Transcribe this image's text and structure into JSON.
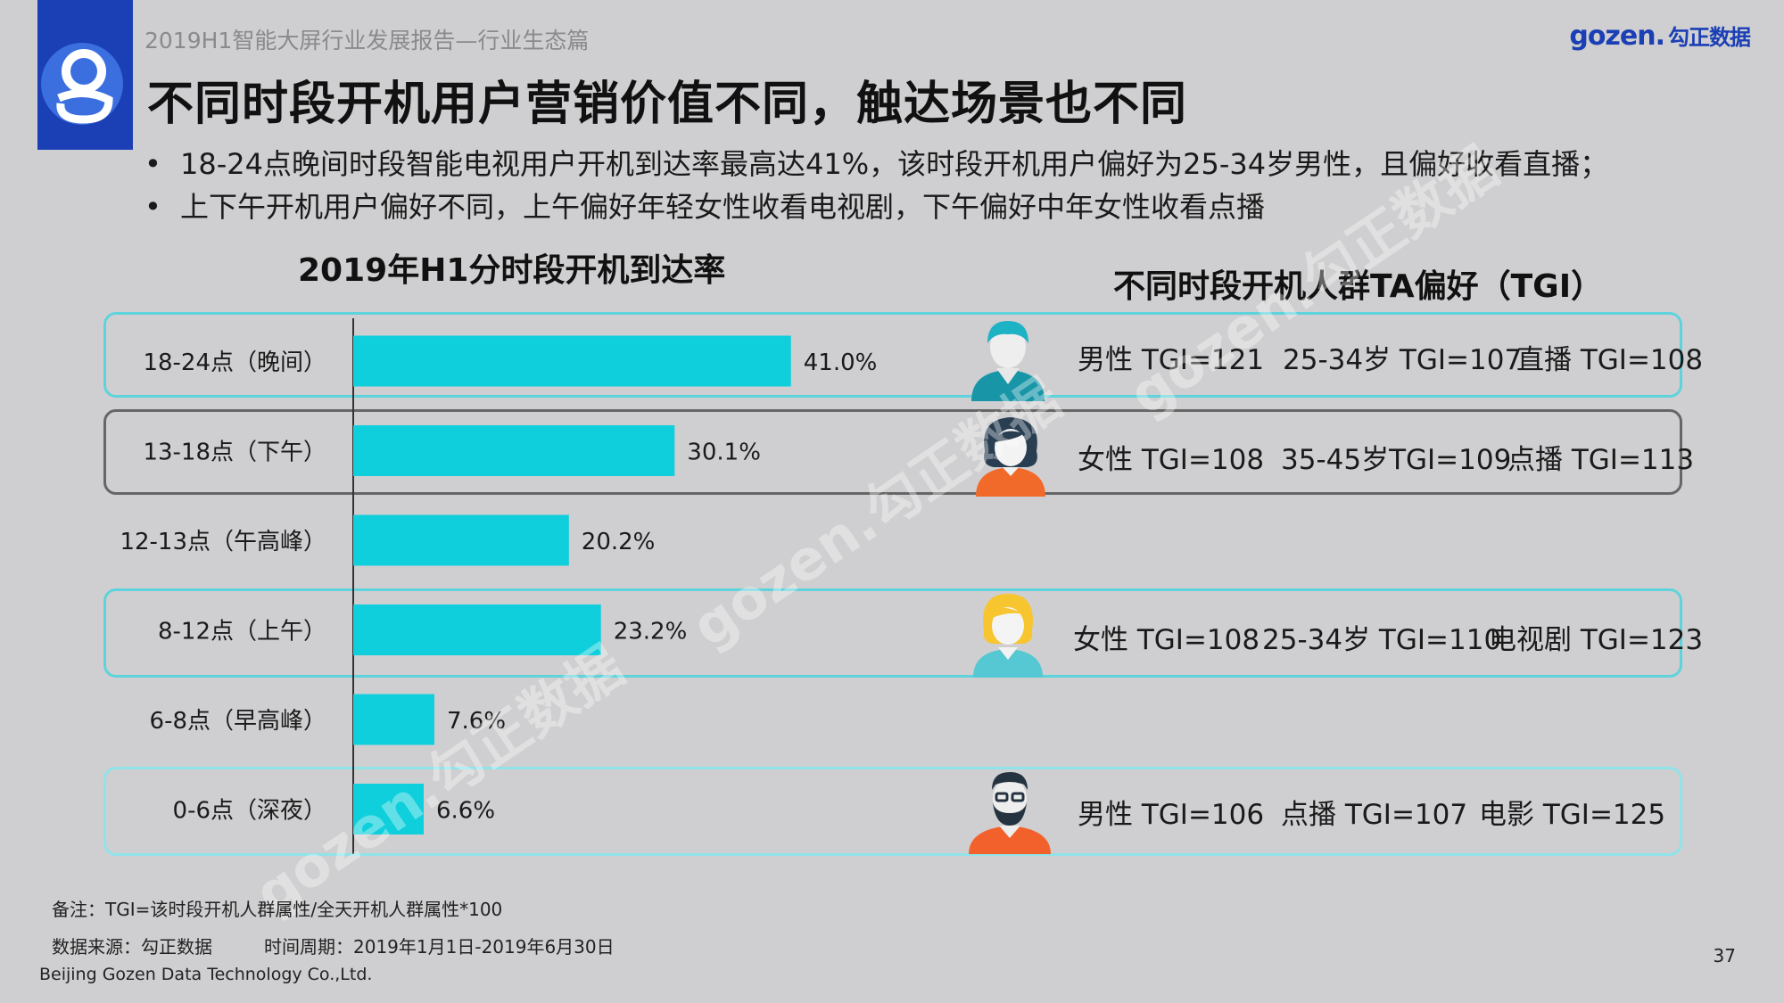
{
  "header": {
    "report_title": "2019H1智能大屏行业发展报告—行业生态篇",
    "brand_latin": "gozen.",
    "brand_cn": "勾正数据",
    "main_title": "不同时段开机用户营销价值不同，触达场景也不同"
  },
  "bullets": [
    "18-24点晚间时段智能电视用户开机到达率最高达41%，该时段开机用户偏好为25-34岁男性，且偏好收看直播；",
    "上下午开机用户偏好不同，上午偏好年轻女性收看电视剧，下午偏好中年女性收看点播"
  ],
  "chart_data": {
    "type": "bar",
    "orientation": "horizontal",
    "title": "2019年H1分时段开机到达率",
    "categories": [
      "18-24点（晚间）",
      "13-18点（下午）",
      "12-13点（午高峰）",
      "8-12点（上午）",
      "6-8点（早高峰）",
      "0-6点（深夜）"
    ],
    "values": [
      41.0,
      30.1,
      20.2,
      23.2,
      7.6,
      6.6
    ],
    "value_labels": [
      "41.0%",
      "30.1%",
      "20.2%",
      "23.2%",
      "7.6%",
      "6.6%"
    ],
    "unit": "%",
    "xlim": [
      0,
      45
    ],
    "bar_color": "#0fcfdc",
    "grid": false
  },
  "tgi": {
    "title": "不同时段开机人群TA偏好（TGI）",
    "rows": [
      {
        "avatar": "young-man-icon",
        "avatar_colors": {
          "top": "#1eb2c5",
          "body": "#1896a8"
        },
        "items": [
          "男性 TGI=121",
          "25-34岁 TGI=107",
          "直播 TGI=108"
        ]
      },
      {
        "avatar": "middle-aged-woman-icon",
        "avatar_colors": {
          "top": "#2a3e52",
          "body": "#f26a2a"
        },
        "items": [
          "女性 TGI=108",
          "35-45岁TGI=109",
          "点播 TGI=113"
        ]
      },
      {
        "avatar": "young-woman-icon",
        "avatar_colors": {
          "top": "#f7c52f",
          "body": "#56c8d3"
        },
        "items": [
          "女性 TGI=108",
          "25-34岁 TGI=110",
          "电视剧 TGI=123"
        ]
      },
      {
        "avatar": "bearded-man-icon",
        "avatar_colors": {
          "top": "#25323f",
          "body": "#f2612b"
        },
        "items": [
          "男性 TGI=106",
          "点播 TGI=107",
          "电影 TGI=125"
        ]
      }
    ]
  },
  "watermark": "gozen.勾正数据",
  "footer": {
    "note": "备注：TGI=该时段开机人群属性/全天开机人群属性*100",
    "source": "数据来源：勾正数据",
    "period": "时间周期：2019年1月1日-2019年6月30日",
    "company": "Beijing Gozen Data Technology Co.,Ltd.",
    "page": "37"
  }
}
